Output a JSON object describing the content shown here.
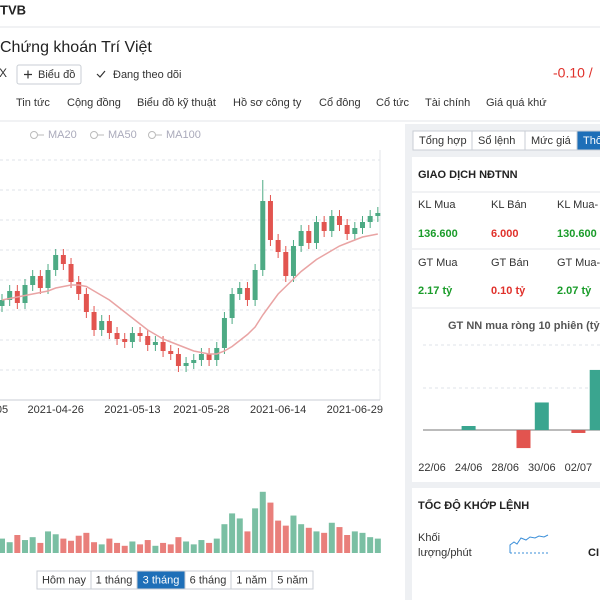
{
  "header": {
    "ticker": "TVB",
    "company": "Chứng khoán Trí Việt",
    "exchange": "X",
    "chart_button": "Biểu đồ",
    "follow_button": "Đang theo dõi",
    "price_change": "-0.10 /"
  },
  "nav_tabs": [
    "Tin tức",
    "Cộng đồng",
    "Biểu đồ kỹ thuật",
    "Hồ sơ công ty",
    "Cổ đông",
    "Cổ tức",
    "Tài chính",
    "Giá quá khứ"
  ],
  "range_buttons": {
    "items": [
      "Hôm nay",
      "1 tháng",
      "3 tháng",
      "6 tháng",
      "1 năm",
      "5 năm"
    ],
    "active": 2
  },
  "side_tabs": {
    "items": [
      "Tổng hợp",
      "Sổ lệnh",
      "Mức giá",
      "Thô"
    ],
    "active": 3
  },
  "foreign": {
    "title": "GIAO DỊCH NĐTNN",
    "rows": [
      [
        {
          "label": "KL Mua",
          "value": "136.600",
          "tone": "up"
        },
        {
          "label": "KL Bán",
          "value": "6.000",
          "tone": "down"
        },
        {
          "label": "KL Mua-",
          "value": "130.600",
          "tone": "up"
        }
      ],
      [
        {
          "label": "GT Mua",
          "value": "2.17 tỷ",
          "tone": "up"
        },
        {
          "label": "GT Bán",
          "value": "0.10 tỷ",
          "tone": "down"
        },
        {
          "label": "GT Mua-",
          "value": "2.07 tỷ",
          "tone": "up"
        }
      ]
    ]
  },
  "speed": {
    "title": "TỐC ĐỘ KHỚP LỆNH",
    "label_lines": [
      "Khối",
      "lượng/phút"
    ],
    "value": "CI"
  },
  "chart_data": [
    {
      "type": "candlestick",
      "legend": [
        "MA20",
        "MA50",
        "MA100"
      ],
      "up_color": "#4daa84",
      "down_color": "#e2544f",
      "ma_color": "#e9a4a4",
      "categories": [
        "05",
        null,
        null,
        null,
        null,
        null,
        null,
        "2021-04-26",
        null,
        null,
        null,
        null,
        null,
        null,
        null,
        null,
        null,
        "2021-05-13",
        null,
        null,
        null,
        null,
        null,
        null,
        null,
        null,
        "2021-05-28",
        null,
        null,
        null,
        null,
        null,
        null,
        null,
        null,
        null,
        "2021-06-14",
        null,
        null,
        null,
        null,
        null,
        null,
        null,
        null,
        null,
        "2021-06-29",
        null,
        null,
        null
      ],
      "open": [
        10.8,
        11.0,
        11.3,
        10.9,
        11.5,
        11.8,
        11.4,
        12.0,
        12.5,
        12.2,
        11.6,
        11.2,
        10.6,
        10.0,
        10.3,
        9.9,
        9.7,
        9.6,
        9.9,
        9.8,
        9.5,
        9.6,
        9.3,
        9.2,
        8.8,
        8.9,
        9.0,
        9.2,
        9.0,
        9.4,
        10.4,
        11.2,
        11.4,
        11.0,
        12.0,
        14.3,
        13.0,
        12.6,
        11.8,
        12.8,
        13.3,
        12.9,
        13.6,
        13.3,
        13.8,
        13.5,
        13.2,
        13.4,
        13.6,
        13.8
      ],
      "high": [
        11.2,
        11.5,
        11.5,
        11.7,
        12.0,
        12.0,
        12.2,
        12.7,
        12.7,
        12.4,
        11.8,
        11.4,
        10.8,
        10.5,
        10.5,
        10.1,
        9.9,
        10.1,
        10.1,
        10.0,
        9.8,
        9.8,
        9.5,
        9.4,
        9.1,
        9.2,
        9.4,
        9.4,
        9.6,
        10.6,
        11.4,
        11.6,
        11.6,
        12.2,
        15.0,
        14.5,
        13.2,
        12.8,
        13.0,
        13.5,
        13.5,
        13.8,
        13.8,
        14.0,
        14.0,
        13.7,
        13.6,
        13.8,
        14.0,
        14.1
      ],
      "low": [
        10.6,
        10.8,
        10.7,
        10.7,
        11.3,
        11.2,
        11.2,
        11.8,
        12.0,
        11.4,
        11.0,
        10.4,
        9.8,
        9.8,
        9.7,
        9.5,
        9.4,
        9.4,
        9.6,
        9.3,
        9.3,
        9.1,
        9.0,
        8.6,
        8.6,
        8.7,
        8.8,
        8.8,
        8.8,
        9.2,
        10.2,
        11.0,
        10.8,
        10.8,
        11.8,
        12.8,
        12.4,
        11.6,
        11.6,
        12.6,
        12.7,
        12.7,
        13.1,
        13.1,
        13.3,
        13.0,
        13.0,
        13.2,
        13.4,
        13.6
      ],
      "close": [
        11.0,
        11.3,
        10.9,
        11.5,
        11.8,
        11.4,
        12.0,
        12.5,
        12.2,
        11.6,
        11.2,
        10.6,
        10.0,
        10.3,
        9.9,
        9.7,
        9.6,
        9.9,
        9.8,
        9.5,
        9.6,
        9.3,
        9.2,
        8.8,
        8.9,
        9.0,
        9.2,
        9.0,
        9.4,
        10.4,
        11.2,
        11.4,
        11.0,
        12.0,
        14.3,
        13.0,
        12.6,
        11.8,
        12.8,
        13.3,
        12.9,
        13.6,
        13.3,
        13.8,
        13.5,
        13.2,
        13.4,
        13.6,
        13.8,
        13.9
      ],
      "ma20": [
        11.0,
        11.05,
        11.1,
        11.15,
        11.2,
        11.25,
        11.3,
        11.4,
        11.45,
        11.5,
        11.5,
        11.45,
        11.3,
        11.15,
        11.0,
        10.8,
        10.6,
        10.4,
        10.2,
        10.0,
        9.85,
        9.7,
        9.6,
        9.5,
        9.4,
        9.3,
        9.25,
        9.2,
        9.2,
        9.3,
        9.45,
        9.65,
        9.85,
        10.1,
        10.5,
        10.85,
        11.2,
        11.45,
        11.7,
        11.95,
        12.15,
        12.35,
        12.5,
        12.65,
        12.8,
        12.9,
        13.0,
        13.1,
        13.15,
        13.2
      ],
      "ylim": [
        8,
        16
      ]
    },
    {
      "type": "volume",
      "values": [
        20,
        15,
        25,
        18,
        22,
        14,
        30,
        26,
        20,
        17,
        24,
        28,
        15,
        12,
        20,
        14,
        10,
        16,
        12,
        18,
        10,
        14,
        12,
        22,
        16,
        12,
        18,
        14,
        20,
        40,
        55,
        48,
        30,
        62,
        85,
        70,
        45,
        38,
        52,
        40,
        35,
        30,
        28,
        42,
        36,
        25,
        30,
        28,
        22,
        20
      ],
      "ylim": [
        0,
        100
      ]
    },
    {
      "type": "bar",
      "title": "GT NN mua ròng 10 phiên (tỷ",
      "categories": [
        "22/06",
        null,
        "24/06",
        null,
        "28/06",
        null,
        "30/06",
        null,
        "02/07",
        null
      ],
      "values": [
        0,
        0,
        0.14,
        0,
        0,
        -0.62,
        0.95,
        0,
        -0.1,
        2.07
      ],
      "ylim": [
        -1.03,
        3.1
      ],
      "up_color": "#3aa58f",
      "down_color": "#e2544f"
    }
  ]
}
